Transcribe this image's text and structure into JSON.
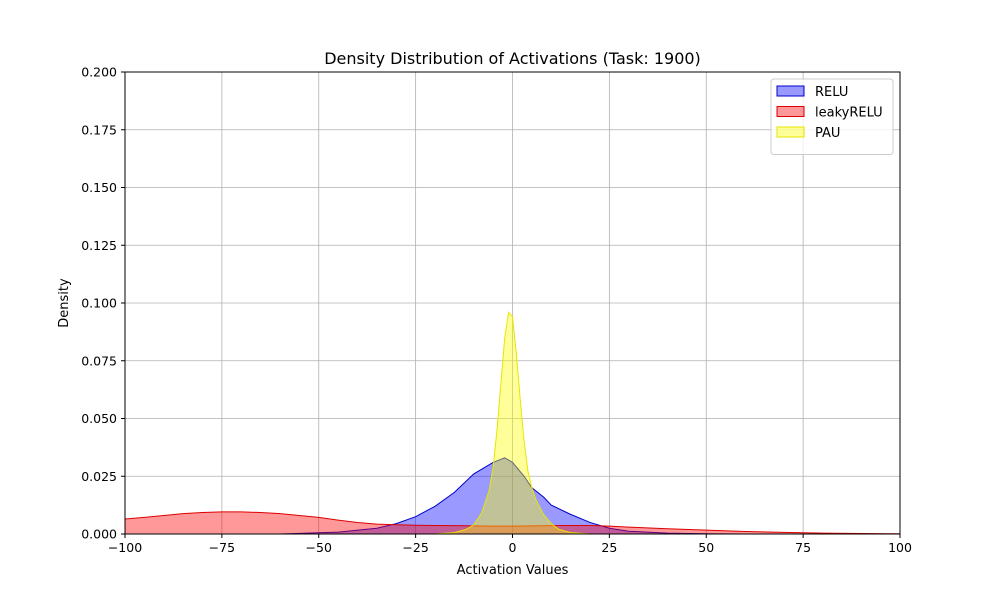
{
  "chart_data": {
    "type": "area",
    "title": "Density Distribution of Activations (Task: 1900)",
    "xlabel": "Activation Values",
    "ylabel": "Density",
    "xlim": [
      -100,
      100
    ],
    "ylim": [
      0,
      0.2
    ],
    "xticks": [
      -100,
      -75,
      -50,
      -25,
      0,
      25,
      50,
      75,
      100
    ],
    "xtick_labels": [
      "−100",
      "−75",
      "−50",
      "−25",
      "0",
      "25",
      "50",
      "75",
      "100"
    ],
    "yticks": [
      0,
      0.025,
      0.05,
      0.075,
      0.1,
      0.125,
      0.15,
      0.175,
      0.2
    ],
    "ytick_labels": [
      "0.000",
      "0.025",
      "0.050",
      "0.075",
      "0.100",
      "0.125",
      "0.150",
      "0.175",
      "0.200"
    ],
    "grid": true,
    "legend_position": "top-right",
    "series": [
      {
        "name": "RELU",
        "fill": "#0000ff",
        "stroke": "#0000cc",
        "x": [
          -100,
          -60,
          -45,
          -35,
          -30,
          -25,
          -20,
          -15,
          -10,
          -5,
          -2,
          0,
          3,
          5,
          8,
          10,
          15,
          20,
          25,
          30,
          40,
          50,
          60,
          75,
          100
        ],
        "y": [
          0,
          0,
          0.0008,
          0.0025,
          0.0045,
          0.0075,
          0.012,
          0.018,
          0.026,
          0.031,
          0.033,
          0.031,
          0.025,
          0.02,
          0.016,
          0.0125,
          0.0085,
          0.005,
          0.0025,
          0.0012,
          0.0004,
          0.0001,
          0,
          0,
          0
        ]
      },
      {
        "name": "leakyRELU",
        "fill": "#ff0000",
        "stroke": "#dd0000",
        "x": [
          -100,
          -95,
          -90,
          -85,
          -80,
          -75,
          -70,
          -65,
          -60,
          -55,
          -50,
          -45,
          -40,
          -35,
          -30,
          -25,
          -20,
          -15,
          -10,
          -5,
          0,
          5,
          10,
          15,
          20,
          25,
          30,
          40,
          50,
          60,
          70,
          80,
          90,
          100
        ],
        "y": [
          0.0065,
          0.0072,
          0.008,
          0.0088,
          0.0093,
          0.0096,
          0.0096,
          0.0093,
          0.0088,
          0.008,
          0.0072,
          0.006,
          0.005,
          0.0043,
          0.004,
          0.0038,
          0.0037,
          0.0036,
          0.0035,
          0.0034,
          0.0034,
          0.0035,
          0.0036,
          0.0037,
          0.0037,
          0.0034,
          0.003,
          0.0023,
          0.0017,
          0.0011,
          0.0007,
          0.0004,
          0.0002,
          0.0001
        ]
      },
      {
        "name": "PAU",
        "fill": "#ffff00",
        "stroke": "#e6e600",
        "x": [
          -100,
          -20,
          -15,
          -12,
          -10,
          -8,
          -6,
          -5,
          -4,
          -3,
          -2,
          -1,
          0,
          1,
          2,
          3,
          4,
          5,
          6,
          8,
          10,
          12,
          15,
          20,
          100
        ],
        "y": [
          0,
          0,
          0.0006,
          0.002,
          0.004,
          0.009,
          0.019,
          0.029,
          0.045,
          0.065,
          0.085,
          0.096,
          0.094,
          0.078,
          0.058,
          0.04,
          0.027,
          0.02,
          0.015,
          0.0085,
          0.0045,
          0.002,
          0.0006,
          0,
          0
        ]
      }
    ]
  }
}
